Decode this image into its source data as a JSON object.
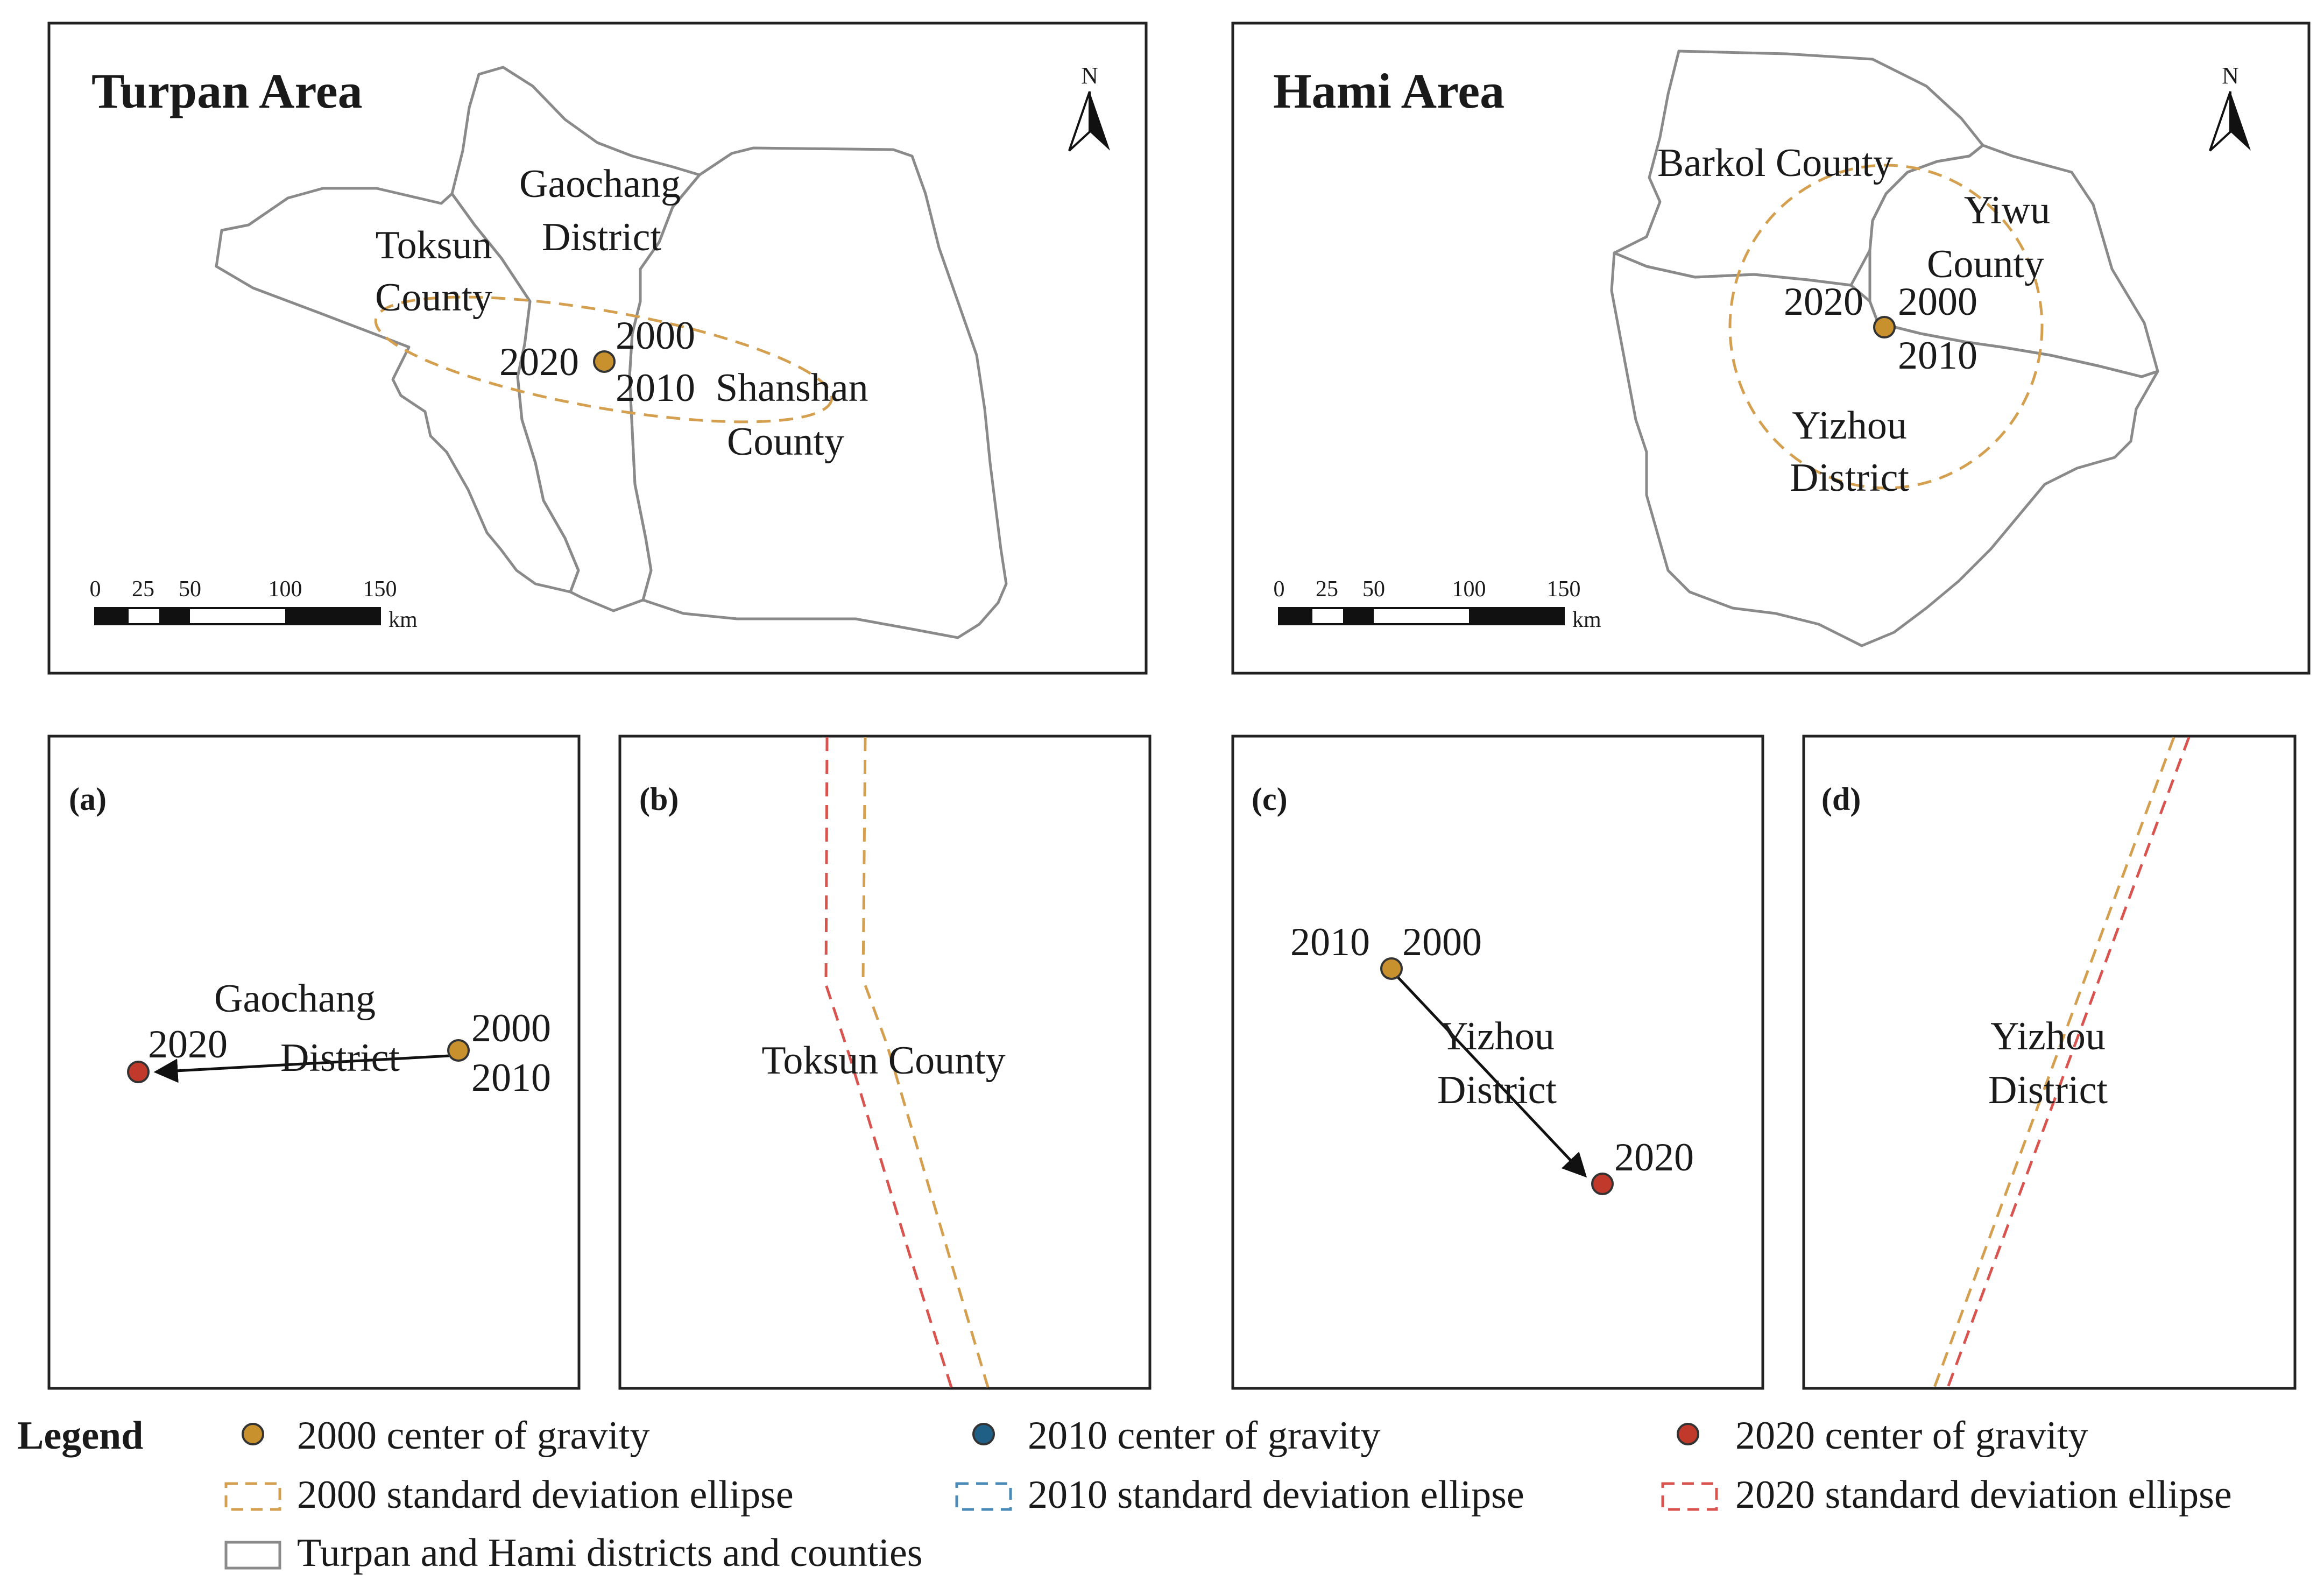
{
  "colors": {
    "c2000": "#c8912e",
    "c2010": "#1f5f86",
    "c2020": "#c0392b",
    "ellipse2000": "#d4a050",
    "ellipse2010": "#4a8ab8",
    "ellipse2020": "#d9534f",
    "boundary": "#8a8a8a"
  },
  "turpan": {
    "title": "Turpan Area",
    "north": "N",
    "labels": {
      "gaochang1": "Gaochang",
      "gaochang2": "District",
      "toksun1": "Toksun",
      "toksun2": "County",
      "shanshan1": "Shanshan",
      "shanshan2": "County",
      "y2000": "2000",
      "y2010": "2010",
      "y2020": "2020"
    },
    "scale": {
      "t0": "0",
      "t1": "25",
      "t2": "50",
      "t3": "100",
      "t4": "150",
      "unit": "km"
    }
  },
  "hami": {
    "title": "Hami Area",
    "north": "N",
    "labels": {
      "barkol": "Barkol County",
      "yiwu1": "Yiwu",
      "yiwu2": "County",
      "yizhou1": "Yizhou",
      "yizhou2": "District",
      "y2000": "2000",
      "y2010": "2010",
      "y2020": "2020"
    },
    "scale": {
      "t0": "0",
      "t1": "25",
      "t2": "50",
      "t3": "100",
      "t4": "150",
      "unit": "km"
    }
  },
  "panels": {
    "a": {
      "tag": "(a)",
      "label1": "Gaochang",
      "label2": "District",
      "y2000": "2000",
      "y2010": "2010",
      "y2020": "2020"
    },
    "b": {
      "tag": "(b)",
      "label": "Toksun County"
    },
    "c": {
      "tag": "(c)",
      "label1": "Yizhou",
      "label2": "District",
      "y2000": "2000",
      "y2010": "2010",
      "y2020": "2020"
    },
    "d": {
      "tag": "(d)",
      "label1": "Yizhou",
      "label2": "District"
    }
  },
  "legend": {
    "title": "Legend",
    "g2000": "2000 center of gravity",
    "g2010": "2010 center of gravity",
    "g2020": "2020 center of gravity",
    "e2000": "2000 standard deviation ellipse",
    "e2010": "2010 standard deviation ellipse",
    "e2020": "2020 standard deviation ellipse",
    "districts": "Turpan and Hami districts and counties"
  }
}
